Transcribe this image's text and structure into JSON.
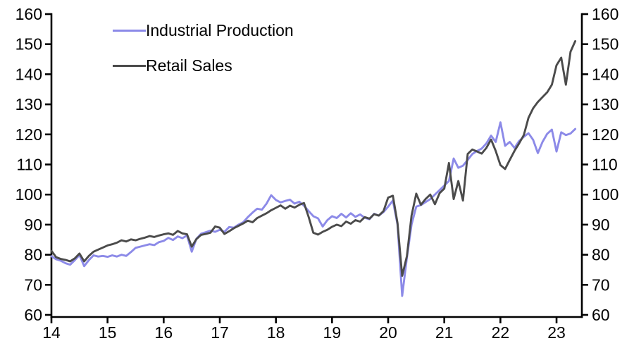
{
  "chart_data": {
    "type": "line",
    "title": "",
    "x_axis": {
      "unit": "year",
      "start": 2014,
      "frequency": "monthly",
      "tick_labels": [
        "14",
        "15",
        "16",
        "17",
        "18",
        "19",
        "20",
        "21",
        "22",
        "23"
      ],
      "range_years": [
        14,
        23.45
      ]
    },
    "y_axis": {
      "ticks": [
        60,
        70,
        80,
        90,
        100,
        110,
        120,
        130,
        140,
        150,
        160
      ],
      "ylim": [
        60,
        160
      ],
      "sides": "both",
      "grid": false
    },
    "legend_position": "top-left-inside",
    "axis_color": "#000000",
    "background_color": "#ffffff",
    "series": [
      {
        "name": "Industrial Production",
        "color": "#8c8ae8",
        "first_point": "2014-01",
        "last_point": "2023-05",
        "values": [
          79.5,
          78.5,
          78.0,
          77.2,
          76.7,
          78.2,
          79.9,
          76.2,
          78.2,
          79.8,
          79.4,
          79.6,
          79.3,
          79.8,
          79.4,
          80.0,
          79.6,
          80.9,
          82.3,
          82.7,
          83.1,
          83.5,
          83.2,
          84.2,
          84.6,
          85.6,
          84.9,
          86.1,
          85.5,
          86.4,
          81.0,
          85.3,
          87.0,
          87.5,
          88.0,
          87.6,
          88.3,
          87.6,
          89.2,
          89.0,
          90.0,
          90.8,
          92.5,
          94.0,
          95.3,
          95.0,
          97.0,
          99.8,
          98.2,
          97.4,
          97.9,
          98.3,
          97.0,
          97.6,
          96.3,
          94.5,
          92.8,
          92.1,
          89.4,
          91.5,
          92.8,
          92.2,
          93.6,
          92.4,
          93.8,
          92.6,
          93.4,
          92.3,
          91.8,
          93.6,
          93.0,
          94.2,
          96.0,
          98.0,
          90.0,
          66.3,
          79.0,
          90.0,
          96.0,
          96.5,
          97.5,
          98.5,
          100.0,
          101.5,
          103.0,
          104.5,
          112.0,
          108.9,
          109.6,
          111.5,
          113.5,
          114.5,
          115.3,
          117.0,
          119.6,
          117.5,
          124.0,
          116.2,
          117.5,
          115.5,
          117.8,
          119.2,
          120.4,
          118.2,
          113.8,
          117.5,
          120.2,
          121.6,
          114.3,
          120.7,
          119.8,
          120.3,
          121.8
        ]
      },
      {
        "name": "Retail Sales",
        "color": "#4b4b4b",
        "first_point": "2014-01",
        "last_point": "2023-05",
        "values": [
          81.3,
          79.2,
          78.6,
          78.3,
          77.8,
          78.8,
          80.4,
          77.8,
          79.6,
          81.0,
          81.7,
          82.4,
          83.1,
          83.5,
          84.0,
          84.8,
          84.4,
          85.1,
          84.8,
          85.3,
          85.7,
          86.2,
          85.9,
          86.4,
          86.8,
          87.1,
          86.6,
          87.9,
          87.1,
          86.8,
          82.7,
          85.2,
          86.6,
          86.9,
          87.3,
          89.4,
          89.0,
          86.9,
          87.8,
          88.8,
          89.6,
          90.4,
          91.3,
          90.8,
          92.2,
          93.0,
          93.8,
          94.8,
          95.6,
          96.4,
          95.3,
          96.3,
          95.7,
          96.6,
          97.2,
          92.5,
          87.3,
          86.7,
          87.6,
          88.3,
          89.3,
          90.0,
          89.5,
          91.0,
          90.3,
          91.5,
          91.0,
          92.5,
          92.0,
          93.5,
          93.0,
          94.5,
          99.0,
          99.6,
          90.5,
          73.0,
          79.5,
          93.0,
          100.3,
          96.6,
          98.5,
          100.0,
          96.8,
          100.5,
          102.0,
          110.5,
          98.5,
          104.5,
          98.0,
          113.5,
          115.0,
          114.3,
          113.6,
          115.5,
          118.3,
          114.5,
          109.8,
          108.5,
          111.5,
          114.5,
          117.0,
          119.8,
          125.5,
          128.7,
          130.8,
          132.4,
          134.0,
          136.5,
          143.0,
          145.5,
          136.5,
          147.5,
          151.0
        ]
      }
    ]
  },
  "legend": {
    "items": [
      {
        "label": "Industrial Production"
      },
      {
        "label": "Retail Sales"
      }
    ]
  }
}
